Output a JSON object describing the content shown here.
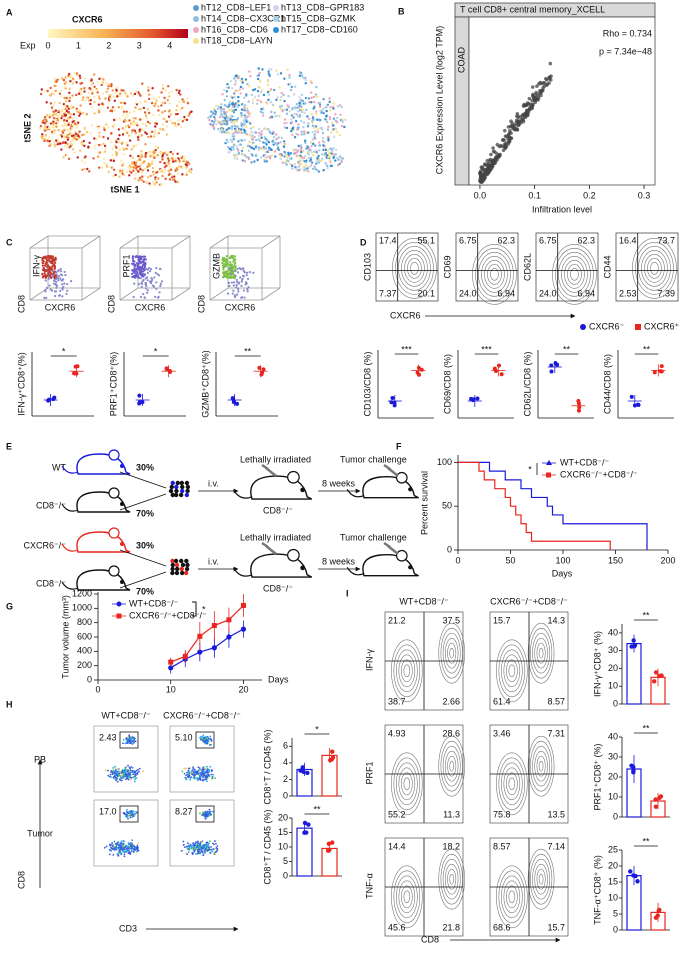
{
  "A": {
    "label": "A",
    "title": "CXCR6",
    "scale_label": "Exp",
    "scale_lim": [
      0,
      4.6
    ],
    "scale_ticks": [
      0,
      1,
      2,
      3,
      4
    ],
    "legend": [
      {
        "name": "hT12_CD8−LEF1",
        "color": "#5b9bd5"
      },
      {
        "name": "hT13_CD8−GPR183",
        "color": "#cdd6e6"
      },
      {
        "name": "hT14_CD8−CX3CR1",
        "color": "#8dbfe2"
      },
      {
        "name": "hT15_CD8−GZMK",
        "color": "#a9d2ec"
      },
      {
        "name": "hT16_CD8−CD6",
        "color": "#f3a5b8"
      },
      {
        "name": "hT17_CD8−CD160",
        "color": "#2d8bd6"
      },
      {
        "name": "hT18_CD8−LAYN",
        "color": "#f6e08c"
      }
    ],
    "xlabel": "tSNE 1",
    "ylabel": "tSNE 2"
  },
  "B": {
    "label": "B",
    "strip_top": "T cell CD8+ central memory_XCELL",
    "strip_side": "COAD",
    "rho": "Rho = 0.734",
    "p": "p = 7.34e−48",
    "xlabel": "Infiltration level",
    "ylabel": "CXCR6 Expression Level (log2 TPM)",
    "xlim": [
      -0.02,
      0.32
    ],
    "xticks": [
      {
        "value": 0,
        "label": "0.0"
      },
      0.1,
      0.2,
      0.3
    ]
  },
  "C": {
    "label": "C",
    "plots": [
      {
        "marker": "IFN-γ",
        "color": "#c0392b"
      },
      {
        "marker": "PRF1",
        "color": "#6a5acd"
      },
      {
        "marker": "GZMB",
        "color": "#7cc242"
      }
    ],
    "axis_y": "CD8",
    "axis_x": "CXCR6",
    "dot_ylabels": [
      "IFN-γ⁺CD8⁺(%)",
      "PRF1⁺CD8⁺(%)",
      "GZMB⁺CD8⁺(%)"
    ],
    "sig": [
      "*",
      "*",
      "**"
    ]
  },
  "D": {
    "label": "D",
    "plots": [
      {
        "marker": "CD103",
        "q": [
          "17.4",
          "55.1",
          "7.37",
          "20.1"
        ]
      },
      {
        "marker": "CD69",
        "q": [
          "6.75",
          "62.3",
          "24.0",
          "6.94"
        ]
      },
      {
        "marker": "CD62L",
        "q": [
          "6.75",
          "62.3",
          "24.0",
          "6.94"
        ]
      },
      {
        "marker": "CD44",
        "q": [
          "16.4",
          "73.7",
          "2.53",
          "7.39"
        ]
      }
    ],
    "axis_x": "CXCR6",
    "legend": [
      {
        "name": "CXCR6⁻",
        "color": "#1a1adb"
      },
      {
        "name": "CXCR6⁺",
        "color": "#e8261f"
      }
    ],
    "dot_ylabels": [
      "CD103/CD8 (%)",
      "CD69/CD8 (%)",
      "CD62L/CD8 (%)",
      "CD44/CD8 (%)"
    ],
    "sig": [
      "***",
      "***",
      "**",
      "**"
    ]
  },
  "E": {
    "label": "E",
    "rows": [
      {
        "donor": "WT",
        "donor_color": "#1a1adb",
        "donor_pct": "30%",
        "recipient": "CD8⁻/⁻",
        "recipient_pct": "70%",
        "host": "CD8⁻/⁻"
      },
      {
        "donor": "CXCR6⁻/⁻",
        "donor_color": "#e8261f",
        "donor_pct": "30%",
        "recipient": "CD8⁻/⁻",
        "recipient_pct": "70%",
        "host": "CD8⁻/⁻"
      }
    ],
    "route": "i.v.",
    "treatment": "Lethally irradiated",
    "wait": "8 weeks",
    "challenge": "Tumor challenge"
  },
  "F": {
    "label": "F",
    "ylabel": "Percent survival",
    "xlabel": "Days",
    "xlim": [
      0,
      200
    ],
    "ylim": [
      0,
      105
    ],
    "xticks": [
      0,
      50,
      100,
      150,
      200
    ],
    "yticks": [
      0,
      50,
      100
    ],
    "sig": "*",
    "series": [
      {
        "name": "WT+CD8⁻/⁻",
        "color": "#1a1adb",
        "x": [
          0,
          30,
          45,
          60,
          70,
          85,
          90,
          100,
          180
        ],
        "values": [
          100,
          90,
          80,
          70,
          60,
          50,
          40,
          30,
          0
        ]
      },
      {
        "name": "CXCR6⁻/⁻+CD8⁻/⁻",
        "color": "#e8261f",
        "x": [
          0,
          20,
          25,
          35,
          45,
          50,
          55,
          60,
          65,
          70,
          145
        ],
        "values": [
          100,
          90,
          80,
          70,
          60,
          50,
          40,
          30,
          20,
          10,
          0
        ]
      }
    ]
  },
  "G": {
    "label": "G",
    "ylabel": "Tumor volume (mm³)",
    "xlabel": "Days",
    "xlim": [
      0,
      22
    ],
    "ylim": [
      0,
      1200
    ],
    "xticks": [
      0,
      10,
      20
    ],
    "yticks": [
      0,
      200,
      400,
      600,
      800,
      1000,
      1200
    ],
    "sig": "*",
    "x": [
      10,
      12,
      14,
      16,
      18,
      20
    ],
    "series": [
      {
        "name": "WT+CD8⁻/⁻",
        "color": "#1a1adb",
        "values": [
          170,
          290,
          390,
          450,
          600,
          710
        ],
        "errors": [
          80,
          110,
          130,
          140,
          150,
          120
        ]
      },
      {
        "name": "CXCR6⁻/⁻+CD8⁻/⁻",
        "color": "#e8261f",
        "values": [
          250,
          330,
          610,
          760,
          840,
          1040
        ],
        "errors": [
          60,
          90,
          200,
          200,
          170,
          160
        ]
      }
    ]
  },
  "H": {
    "label": "H",
    "groups": [
      "WT+CD8⁻/⁻",
      "CXCR6⁻/⁻+CD8⁻/⁻"
    ],
    "rows": [
      "PB",
      "Tumor"
    ],
    "gates": [
      [
        "2.43",
        "5.10"
      ],
      [
        "17.0",
        "8.27"
      ]
    ],
    "xaxis": "CD3",
    "yaxis": "CD8",
    "colors": [
      "#1a1adb",
      "#e8261f"
    ],
    "bars": [
      {
        "ylabel": "CD8⁺T / CD45 (%)",
        "ylim": [
          0,
          7
        ],
        "yticks": [
          0,
          2,
          4,
          6
        ],
        "values": [
          3.2,
          4.9
        ],
        "errors": [
          0.8,
          0.9
        ],
        "sig": "*"
      },
      {
        "ylabel": "CD8⁺T / CD45 (%)",
        "ylim": [
          0,
          20
        ],
        "yticks": [
          0,
          5,
          10,
          15,
          20
        ],
        "values": [
          16.5,
          9.5
        ],
        "errors": [
          1.5,
          1.5
        ],
        "sig": "**"
      }
    ]
  },
  "I": {
    "label": "I",
    "groups": [
      "WT+CD8⁻/⁻",
      "CXCR6⁻/⁻+CD8⁻/⁻"
    ],
    "xaxis": "CD8",
    "rows": [
      {
        "marker": "IFN-γ",
        "q": [
          [
            "21.2",
            "37.5",
            "38.7",
            "2.66"
          ],
          [
            "15.7",
            "14.3",
            "61.4",
            "8.57"
          ]
        ],
        "bar": {
          "ylabel": "IFN-γ⁺CD8⁺ (%)",
          "ylim": [
            0,
            45
          ],
          "yticks": [
            0,
            10,
            20,
            30,
            40
          ],
          "values": [
            34,
            15
          ],
          "errors": [
            5,
            5
          ],
          "sig": "**"
        }
      },
      {
        "marker": "PRF1",
        "q": [
          [
            "4.93",
            "28.6",
            "55.2",
            "11.3"
          ],
          [
            "3.46",
            "7.31",
            "75.8",
            "13.5"
          ]
        ],
        "bar": {
          "ylabel": "PRF1⁺CD8⁺ (%)",
          "ylim": [
            0,
            40
          ],
          "yticks": [
            0,
            10,
            20,
            30,
            40
          ],
          "values": [
            24,
            8
          ],
          "errors": [
            7,
            4
          ],
          "sig": "**"
        }
      },
      {
        "marker": "TNF-α",
        "q": [
          [
            "14.4",
            "18.2",
            "45.6",
            "21.8"
          ],
          [
            "8.57",
            "7.14",
            "68.6",
            "15.7"
          ]
        ],
        "bar": {
          "ylabel": "TNF-α⁺CD8⁺ (%)",
          "ylim": [
            0,
            25
          ],
          "yticks": [
            0,
            5,
            10,
            15,
            20,
            25
          ],
          "values": [
            17,
            5.5
          ],
          "errors": [
            3,
            3
          ],
          "sig": "**"
        }
      }
    ]
  }
}
